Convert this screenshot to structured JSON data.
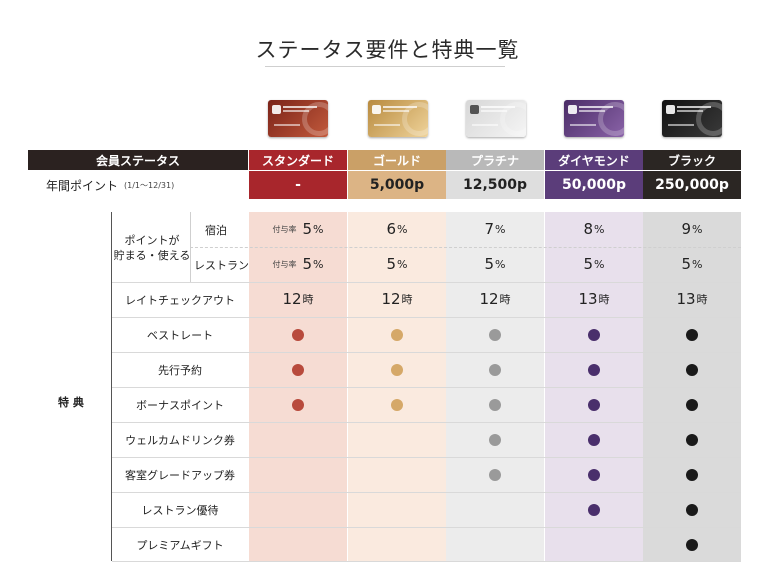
{
  "title": "ステータス要件と特典一覧",
  "header_row": {
    "label": "会員ステータス",
    "columns": [
      "スタンダード",
      "ゴールド",
      "プラチナ",
      "ダイヤモンド",
      "ブラック"
    ]
  },
  "points_row": {
    "label": "年間ポイント",
    "label_note": "(1/1〜12/31)",
    "values": [
      "-",
      "5,000p",
      "12,500p",
      "50,000p",
      "250,000p"
    ]
  },
  "section_label": "特 典",
  "points_group": {
    "label_line1": "ポイントが",
    "label_line2": "貯まる・使える",
    "rate_prefix": "付与率",
    "unit": "%",
    "rows": [
      {
        "label": "宿泊",
        "values": [
          "5",
          "6",
          "7",
          "8",
          "9"
        ]
      },
      {
        "label": "レストラン",
        "values": [
          "5",
          "5",
          "5",
          "5",
          "5"
        ]
      }
    ]
  },
  "late_checkout": {
    "label": "レイトチェックアウト",
    "unit": "時",
    "values": [
      "12",
      "12",
      "12",
      "13",
      "13"
    ]
  },
  "benefits": [
    {
      "label": "ベストレート",
      "has": [
        true,
        true,
        true,
        true,
        true
      ]
    },
    {
      "label": "先行予約",
      "has": [
        true,
        true,
        true,
        true,
        true
      ]
    },
    {
      "label": "ボーナスポイント",
      "has": [
        true,
        true,
        true,
        true,
        true
      ]
    },
    {
      "label": "ウェルカムドリンク券",
      "has": [
        false,
        false,
        true,
        true,
        true
      ]
    },
    {
      "label": "客室グレードアップ券",
      "has": [
        false,
        false,
        true,
        true,
        true
      ]
    },
    {
      "label": "レストラン優待",
      "has": [
        false,
        false,
        false,
        true,
        true
      ]
    },
    {
      "label": "プレミアムギフト",
      "has": [
        false,
        false,
        false,
        false,
        true
      ]
    }
  ],
  "colors": {
    "header_dark": "#2b2220",
    "tiers": [
      {
        "name": "standard",
        "header": "#a8262c",
        "points_bg": "#a8262c",
        "points_text": "#ffffff",
        "column_bg": "#f6dcd3",
        "dot": "#b84a3c",
        "card": [
          "#7a2218",
          "#c25a3c"
        ]
      },
      {
        "name": "gold",
        "header": "#caa067",
        "points_bg": "#dcb485",
        "points_text": "#222222",
        "column_bg": "#faeadf",
        "dot": "#d5a868",
        "card": [
          "#b88a3e",
          "#efd39a"
        ]
      },
      {
        "name": "platinum",
        "header": "#b9b9b9",
        "points_bg": "#dedede",
        "points_text": "#222222",
        "column_bg": "#ececec",
        "dot": "#9a9a9a",
        "card": [
          "#d7d7d7",
          "#f5f5f5"
        ]
      },
      {
        "name": "diamond",
        "header": "#5b3d7a",
        "points_bg": "#5b3d7a",
        "points_text": "#ffffff",
        "column_bg": "#e8e0ec",
        "dot": "#4a2f6c",
        "card": [
          "#4a2c66",
          "#8a63a8"
        ]
      },
      {
        "name": "black",
        "header": "#2b2623",
        "points_bg": "#2b2623",
        "points_text": "#ffffff",
        "column_bg": "#dadada",
        "dot": "#1a1a1a",
        "card": [
          "#111111",
          "#3a3a3a"
        ]
      }
    ]
  }
}
